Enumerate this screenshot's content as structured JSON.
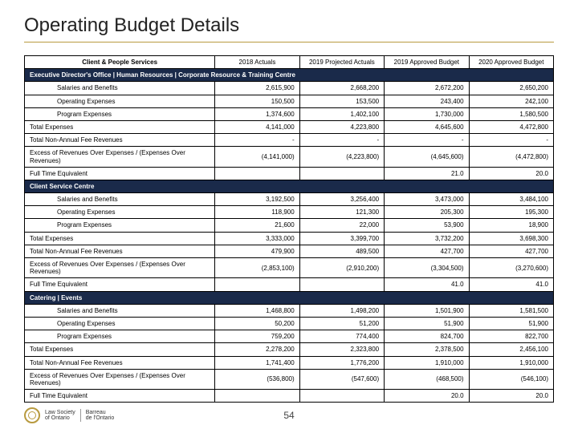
{
  "title": "Operating Budget Details",
  "page_number": "54",
  "logo": {
    "line1": "Law Society",
    "line2": "of Ontario",
    "line3": "Barreau",
    "line4": "de l'Ontario"
  },
  "headers": {
    "main": "Client & People Services",
    "cols": [
      "2018 Actuals",
      "2019 Projected Actuals",
      "2019 Approved Budget",
      "2020 Approved Budget"
    ]
  },
  "sections": [
    {
      "title": "Executive Director's Office | Human Resources | Corporate Resource & Training Centre",
      "rows": [
        {
          "label": "Salaries and Benefits",
          "indent": true,
          "vals": [
            "2,615,900",
            "2,668,200",
            "2,672,200",
            "2,650,200"
          ]
        },
        {
          "label": "Operating Expenses",
          "indent": true,
          "vals": [
            "150,500",
            "153,500",
            "243,400",
            "242,100"
          ]
        },
        {
          "label": "Program Expenses",
          "indent": true,
          "vals": [
            "1,374,600",
            "1,402,100",
            "1,730,000",
            "1,580,500"
          ]
        },
        {
          "label": "Total Expenses",
          "indent": false,
          "vals": [
            "4,141,000",
            "4,223,800",
            "4,645,600",
            "4,472,800"
          ]
        },
        {
          "label": "Total Non-Annual Fee Revenues",
          "indent": false,
          "vals": [
            "-",
            "-",
            "-",
            "-"
          ]
        },
        {
          "label": "Excess of Revenues Over Expenses / (Expenses Over Revenues)",
          "indent": false,
          "vals": [
            "(4,141,000)",
            "(4,223,800)",
            "(4,645,600)",
            "(4,472,800)"
          ]
        }
      ],
      "fte": {
        "label": "Full Time Equivalent",
        "vals": [
          "",
          "",
          "21.0",
          "20.0"
        ]
      }
    },
    {
      "title": "Client Service Centre",
      "rows": [
        {
          "label": "Salaries and Benefits",
          "indent": true,
          "vals": [
            "3,192,500",
            "3,256,400",
            "3,473,000",
            "3,484,100"
          ]
        },
        {
          "label": "Operating Expenses",
          "indent": true,
          "vals": [
            "118,900",
            "121,300",
            "205,300",
            "195,300"
          ]
        },
        {
          "label": "Program Expenses",
          "indent": true,
          "vals": [
            "21,600",
            "22,000",
            "53,900",
            "18,900"
          ]
        },
        {
          "label": "Total Expenses",
          "indent": false,
          "vals": [
            "3,333,000",
            "3,399,700",
            "3,732,200",
            "3,698,300"
          ]
        },
        {
          "label": "Total Non-Annual Fee Revenues",
          "indent": false,
          "vals": [
            "479,900",
            "489,500",
            "427,700",
            "427,700"
          ]
        },
        {
          "label": "Excess of Revenues Over Expenses / (Expenses Over Revenues)",
          "indent": false,
          "vals": [
            "(2,853,100)",
            "(2,910,200)",
            "(3,304,500)",
            "(3,270,600)"
          ]
        }
      ],
      "fte": {
        "label": "Full Time Equivalent",
        "vals": [
          "",
          "",
          "41.0",
          "41.0"
        ]
      }
    },
    {
      "title": "Catering | Events",
      "rows": [
        {
          "label": "Salaries and Benefits",
          "indent": true,
          "vals": [
            "1,468,800",
            "1,498,200",
            "1,501,900",
            "1,581,500"
          ]
        },
        {
          "label": "Operating Expenses",
          "indent": true,
          "vals": [
            "50,200",
            "51,200",
            "51,900",
            "51,900"
          ]
        },
        {
          "label": "Program Expenses",
          "indent": true,
          "vals": [
            "759,200",
            "774,400",
            "824,700",
            "822,700"
          ]
        },
        {
          "label": "Total Expenses",
          "indent": false,
          "vals": [
            "2,278,200",
            "2,323,800",
            "2,378,500",
            "2,456,100"
          ]
        },
        {
          "label": "Total Non-Annual Fee Revenues",
          "indent": false,
          "vals": [
            "1,741,400",
            "1,776,200",
            "1,910,000",
            "1,910,000"
          ]
        },
        {
          "label": "Excess of Revenues Over Expenses / (Expenses Over Revenues)",
          "indent": false,
          "vals": [
            "(536,800)",
            "(547,600)",
            "(468,500)",
            "(546,100)"
          ]
        }
      ],
      "fte": {
        "label": "Full Time Equivalent",
        "vals": [
          "",
          "",
          "20.0",
          "20.0"
        ]
      }
    }
  ]
}
